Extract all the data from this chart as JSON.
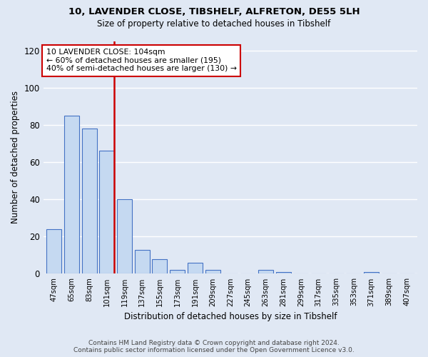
{
  "title1": "10, LAVENDER CLOSE, TIBSHELF, ALFRETON, DE55 5LH",
  "title2": "Size of property relative to detached houses in Tibshelf",
  "xlabel": "Distribution of detached houses by size in Tibshelf",
  "ylabel": "Number of detached properties",
  "categories": [
    "47sqm",
    "65sqm",
    "83sqm",
    "101sqm",
    "119sqm",
    "137sqm",
    "155sqm",
    "173sqm",
    "191sqm",
    "209sqm",
    "227sqm",
    "245sqm",
    "263sqm",
    "281sqm",
    "299sqm",
    "317sqm",
    "335sqm",
    "353sqm",
    "371sqm",
    "389sqm",
    "407sqm"
  ],
  "values": [
    24,
    85,
    78,
    66,
    40,
    13,
    8,
    2,
    6,
    2,
    0,
    0,
    2,
    1,
    0,
    0,
    0,
    0,
    1,
    0,
    0
  ],
  "bar_color": "#c5d9f1",
  "bar_edge_color": "#4472c4",
  "red_line_index": 3,
  "annotation_line1": "10 LAVENDER CLOSE: 104sqm",
  "annotation_line2": "← 60% of detached houses are smaller (195)",
  "annotation_line3": "40% of semi-detached houses are larger (130) →",
  "annotation_box_color": "#ffffff",
  "annotation_box_edge": "#cc0000",
  "red_line_color": "#cc0000",
  "ylim": [
    0,
    125
  ],
  "yticks": [
    0,
    20,
    40,
    60,
    80,
    100,
    120
  ],
  "background_color": "#e0e8f4",
  "grid_color": "#ffffff",
  "fig_bg_color": "#e0e8f4",
  "footer_line1": "Contains HM Land Registry data © Crown copyright and database right 2024.",
  "footer_line2": "Contains public sector information licensed under the Open Government Licence v3.0."
}
